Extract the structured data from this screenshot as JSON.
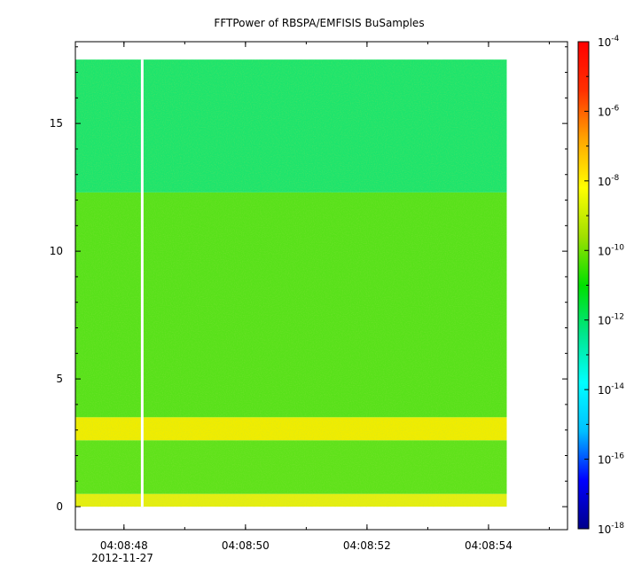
{
  "chart_data": {
    "type": "heatmap",
    "title": "FFTPower of RBSPA/EMFISIS  BuSamples",
    "xlabel": "",
    "ylabel": "",
    "date_label": "2012-11-27",
    "x_ticks": [
      "04:08:48",
      "04:08:50",
      "04:08:52",
      "04:08:54"
    ],
    "x_range": [
      "04:08:47.2",
      "04:08:55.3"
    ],
    "data_x_range": [
      "04:08:47.2",
      "04:08:54.3"
    ],
    "gap_time": "04:08:48.3",
    "y_ticks": [
      0,
      5,
      10,
      15
    ],
    "y_range": [
      -0.9,
      18.2
    ],
    "freq_max": 17.5,
    "colorbar": {
      "scale": "log",
      "range": [
        1e-18,
        0.0001
      ],
      "ticks": [
        {
          "base": "10",
          "exp": "-4"
        },
        {
          "base": "10",
          "exp": "-6"
        },
        {
          "base": "10",
          "exp": "-8"
        },
        {
          "base": "10",
          "exp": "-10"
        },
        {
          "base": "10",
          "exp": "-12"
        },
        {
          "base": "10",
          "exp": "-14"
        },
        {
          "base": "10",
          "exp": "-16"
        },
        {
          "base": "10",
          "exp": "-18"
        }
      ],
      "colors": [
        "#00008b",
        "#0000ff",
        "#00bfff",
        "#00ffff",
        "#00e68c",
        "#00e000",
        "#a0e000",
        "#ffff00",
        "#ffa500",
        "#ff3000",
        "#ff0000"
      ]
    },
    "bands": [
      {
        "freq_range": [
          0.0,
          0.5
        ],
        "log_power": -9.8,
        "color": "#e6ee10"
      },
      {
        "freq_range": [
          0.5,
          2.6
        ],
        "log_power": -10.9,
        "color": "#5fe21a"
      },
      {
        "freq_range": [
          2.6,
          3.5
        ],
        "log_power": -9.0,
        "color": "#f0ec00"
      },
      {
        "freq_range": [
          3.5,
          12.3
        ],
        "log_power": -10.9,
        "color": "#58e11a"
      },
      {
        "freq_range": [
          12.3,
          17.5
        ],
        "log_power": -12.0,
        "color": "#1ee46c"
      }
    ]
  }
}
